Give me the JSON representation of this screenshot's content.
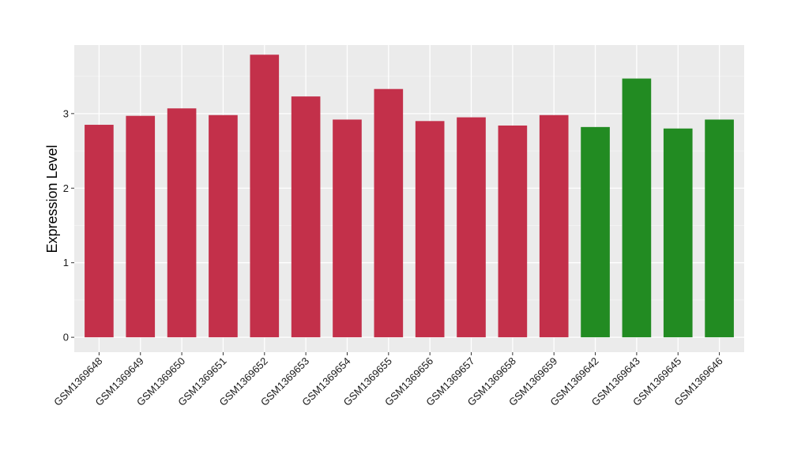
{
  "chart_data": {
    "type": "bar",
    "title": "",
    "xlabel": "",
    "ylabel": "Expression Level",
    "ylim": [
      -0.2,
      3.92
    ],
    "yticks": [
      0,
      1,
      2,
      3
    ],
    "grid": true,
    "legend": "none",
    "panel_background": "#ebebeb",
    "categories": [
      "GSM1369648",
      "GSM1369649",
      "GSM1369650",
      "GSM1369651",
      "GSM1369652",
      "GSM1369653",
      "GSM1369654",
      "GSM1369655",
      "GSM1369656",
      "GSM1369657",
      "GSM1369658",
      "GSM1369659",
      "GSM1369642",
      "GSM1369643",
      "GSM1369645",
      "GSM1369646"
    ],
    "values": [
      2.85,
      2.97,
      3.07,
      2.98,
      3.79,
      3.23,
      2.92,
      3.33,
      2.9,
      2.95,
      2.84,
      2.98,
      2.82,
      3.47,
      2.8,
      2.92
    ],
    "bar_colors": [
      "#c3304a",
      "#c3304a",
      "#c3304a",
      "#c3304a",
      "#c3304a",
      "#c3304a",
      "#c3304a",
      "#c3304a",
      "#c3304a",
      "#c3304a",
      "#c3304a",
      "#c3304a",
      "#228b22",
      "#228b22",
      "#228b22",
      "#228b22"
    ]
  }
}
